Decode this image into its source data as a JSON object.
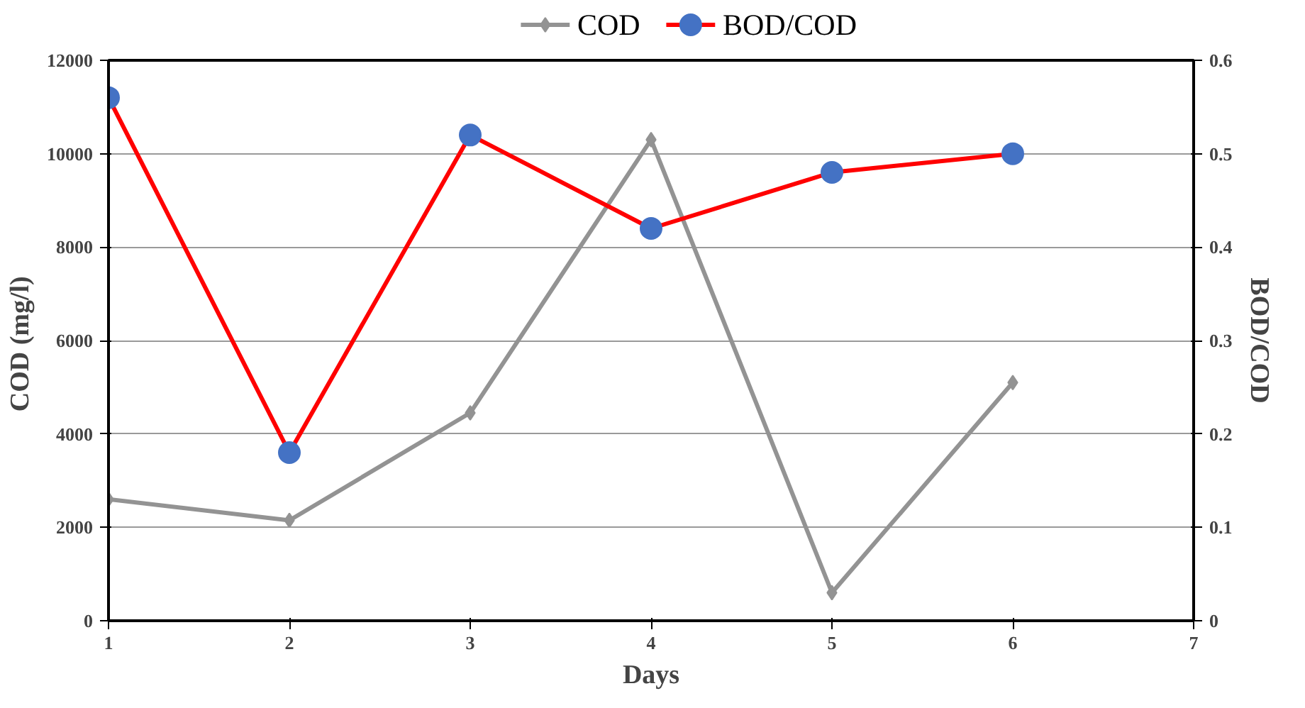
{
  "chart_data": {
    "type": "line",
    "xlabel": "Days",
    "ylabel": "COD  (mg/l)",
    "y2label": "BOD/COD",
    "x": [
      1,
      2,
      3,
      4,
      5,
      6
    ],
    "series": [
      {
        "name": "COD",
        "color": "#939393",
        "marker": "diamond",
        "values": [
          2600,
          2150,
          4450,
          10300,
          600,
          5100
        ]
      },
      {
        "name": "BOD/COD",
        "color": "#ff0000",
        "marker": "circle",
        "axis": "y2",
        "values": [
          0.56,
          0.18,
          0.52,
          0.42,
          0.48,
          0.5
        ]
      }
    ],
    "xlim": [
      1,
      7
    ],
    "xticks": [
      1,
      2,
      3,
      4,
      5,
      6,
      7
    ],
    "ylim": [
      0,
      12000
    ],
    "yticks": [
      0,
      2000,
      4000,
      6000,
      8000,
      10000,
      12000
    ],
    "y2lim": [
      0,
      0.6
    ],
    "y2ticks": [
      0,
      0.1,
      0.2,
      0.3,
      0.4,
      0.5,
      0.6
    ],
    "grid": "y",
    "legend": "top"
  }
}
